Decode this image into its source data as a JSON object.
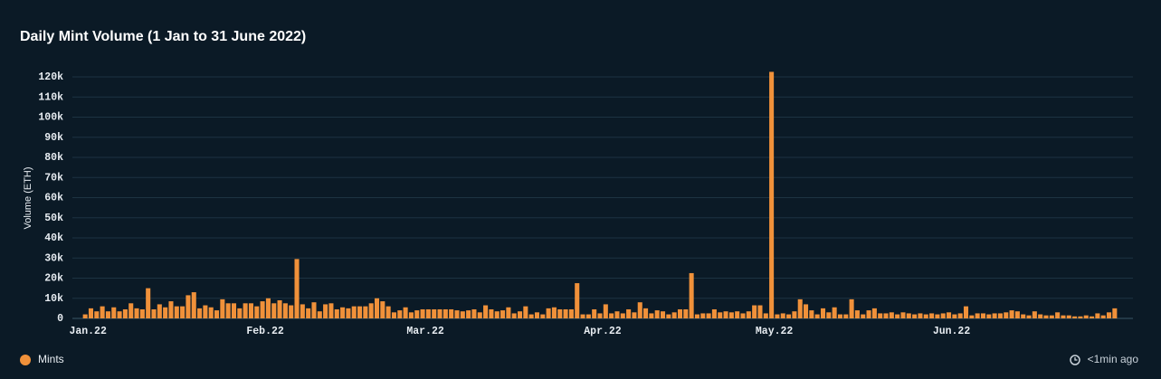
{
  "chart_data": {
    "type": "bar",
    "title": "Daily Mint Volume (1 Jan to 31 June 2022)",
    "y_label": "Volume (ETH)",
    "categories": [
      "Jan.22",
      null,
      null,
      null,
      null,
      null,
      null,
      null,
      null,
      null,
      null,
      null,
      null,
      null,
      null,
      null,
      null,
      null,
      null,
      null,
      null,
      null,
      null,
      null,
      null,
      null,
      null,
      null,
      null,
      null,
      null,
      "Feb.22",
      null,
      null,
      null,
      null,
      null,
      null,
      null,
      null,
      null,
      null,
      null,
      null,
      null,
      null,
      null,
      null,
      null,
      null,
      null,
      null,
      null,
      null,
      null,
      null,
      null,
      null,
      null,
      "Mar.22",
      null,
      null,
      null,
      null,
      null,
      null,
      null,
      null,
      null,
      null,
      null,
      null,
      null,
      null,
      null,
      null,
      null,
      null,
      null,
      null,
      null,
      null,
      null,
      null,
      null,
      null,
      null,
      null,
      null,
      null,
      "Apr.22",
      null,
      null,
      null,
      null,
      null,
      null,
      null,
      null,
      null,
      null,
      null,
      null,
      null,
      null,
      null,
      null,
      null,
      null,
      null,
      null,
      null,
      null,
      null,
      null,
      null,
      null,
      null,
      null,
      null,
      "May.22",
      null,
      null,
      null,
      null,
      null,
      null,
      null,
      null,
      null,
      null,
      null,
      null,
      null,
      null,
      null,
      null,
      null,
      null,
      null,
      null,
      null,
      null,
      null,
      null,
      null,
      null,
      null,
      null,
      null,
      null,
      "Jun.22",
      null,
      null,
      null,
      null,
      null,
      null,
      null,
      null,
      null,
      null,
      null,
      null,
      null,
      null,
      null,
      null,
      null,
      null,
      null,
      null,
      null,
      null,
      null,
      null,
      null,
      null,
      null,
      null,
      null
    ],
    "series": [
      {
        "name": "Mints",
        "color": "#f0913a",
        "values": [
          2000,
          5000,
          3500,
          6000,
          3500,
          5500,
          3500,
          4500,
          7500,
          5000,
          4500,
          15000,
          4500,
          7000,
          5500,
          8500,
          6000,
          6000,
          11500,
          13000,
          5000,
          6500,
          5500,
          4000,
          9500,
          7500,
          7500,
          5000,
          7500,
          7500,
          6000,
          8500,
          10000,
          7500,
          9000,
          7500,
          6500,
          29500,
          7000,
          5000,
          8000,
          3500,
          7000,
          7500,
          4500,
          5500,
          5000,
          6000,
          6000,
          6000,
          7500,
          10000,
          8500,
          6000,
          3000,
          4000,
          5500,
          3000,
          4000,
          4500,
          4500,
          4500,
          4500,
          4500,
          4500,
          4000,
          3500,
          4000,
          4500,
          3000,
          6500,
          4500,
          3500,
          4000,
          5500,
          2500,
          3500,
          6000,
          2000,
          3000,
          2000,
          5000,
          5500,
          4500,
          4500,
          4500,
          17500,
          2000,
          2000,
          4500,
          2500,
          7000,
          2500,
          3500,
          2500,
          4500,
          3000,
          8000,
          5000,
          2500,
          4000,
          3500,
          2000,
          3000,
          4500,
          4500,
          22500,
          2000,
          2500,
          2500,
          4500,
          3000,
          3500,
          3000,
          3500,
          2500,
          3500,
          6500,
          6500,
          2500,
          122500,
          2000,
          2500,
          2000,
          3500,
          9500,
          7000,
          4000,
          2000,
          5000,
          3000,
          5500,
          2000,
          2000,
          9500,
          4000,
          2000,
          4000,
          5000,
          2500,
          2500,
          3000,
          2000,
          3000,
          2500,
          2000,
          2500,
          2000,
          2500,
          2000,
          2500,
          3000,
          2000,
          2500,
          6000,
          1500,
          2500,
          2500,
          2000,
          2500,
          2500,
          3000,
          4000,
          3500,
          2000,
          1500,
          3500,
          2000,
          1500,
          1500,
          3000,
          1500,
          1500,
          1000,
          1000,
          1500,
          1000,
          2500,
          1500,
          3000,
          5000
        ]
      }
    ],
    "ylim": [
      0,
      120000
    ],
    "yticks": [
      0,
      {
        "value": 10000,
        "label": "10k"
      },
      {
        "value": 20000,
        "label": "20k"
      },
      {
        "value": 30000,
        "label": "30k"
      },
      {
        "value": 40000,
        "label": "40k"
      },
      {
        "value": 50000,
        "label": "50k"
      },
      {
        "value": 60000,
        "label": "60k"
      },
      {
        "value": 70000,
        "label": "70k"
      },
      {
        "value": 80000,
        "label": "80k"
      },
      {
        "value": 90000,
        "label": "90k"
      },
      {
        "value": 100000,
        "label": "100k"
      },
      {
        "value": 110000,
        "label": "110k"
      },
      {
        "value": 120000,
        "label": "120k"
      }
    ],
    "grid": true,
    "legend": "bottom-left"
  },
  "footer": {
    "updated": "<1min ago"
  }
}
